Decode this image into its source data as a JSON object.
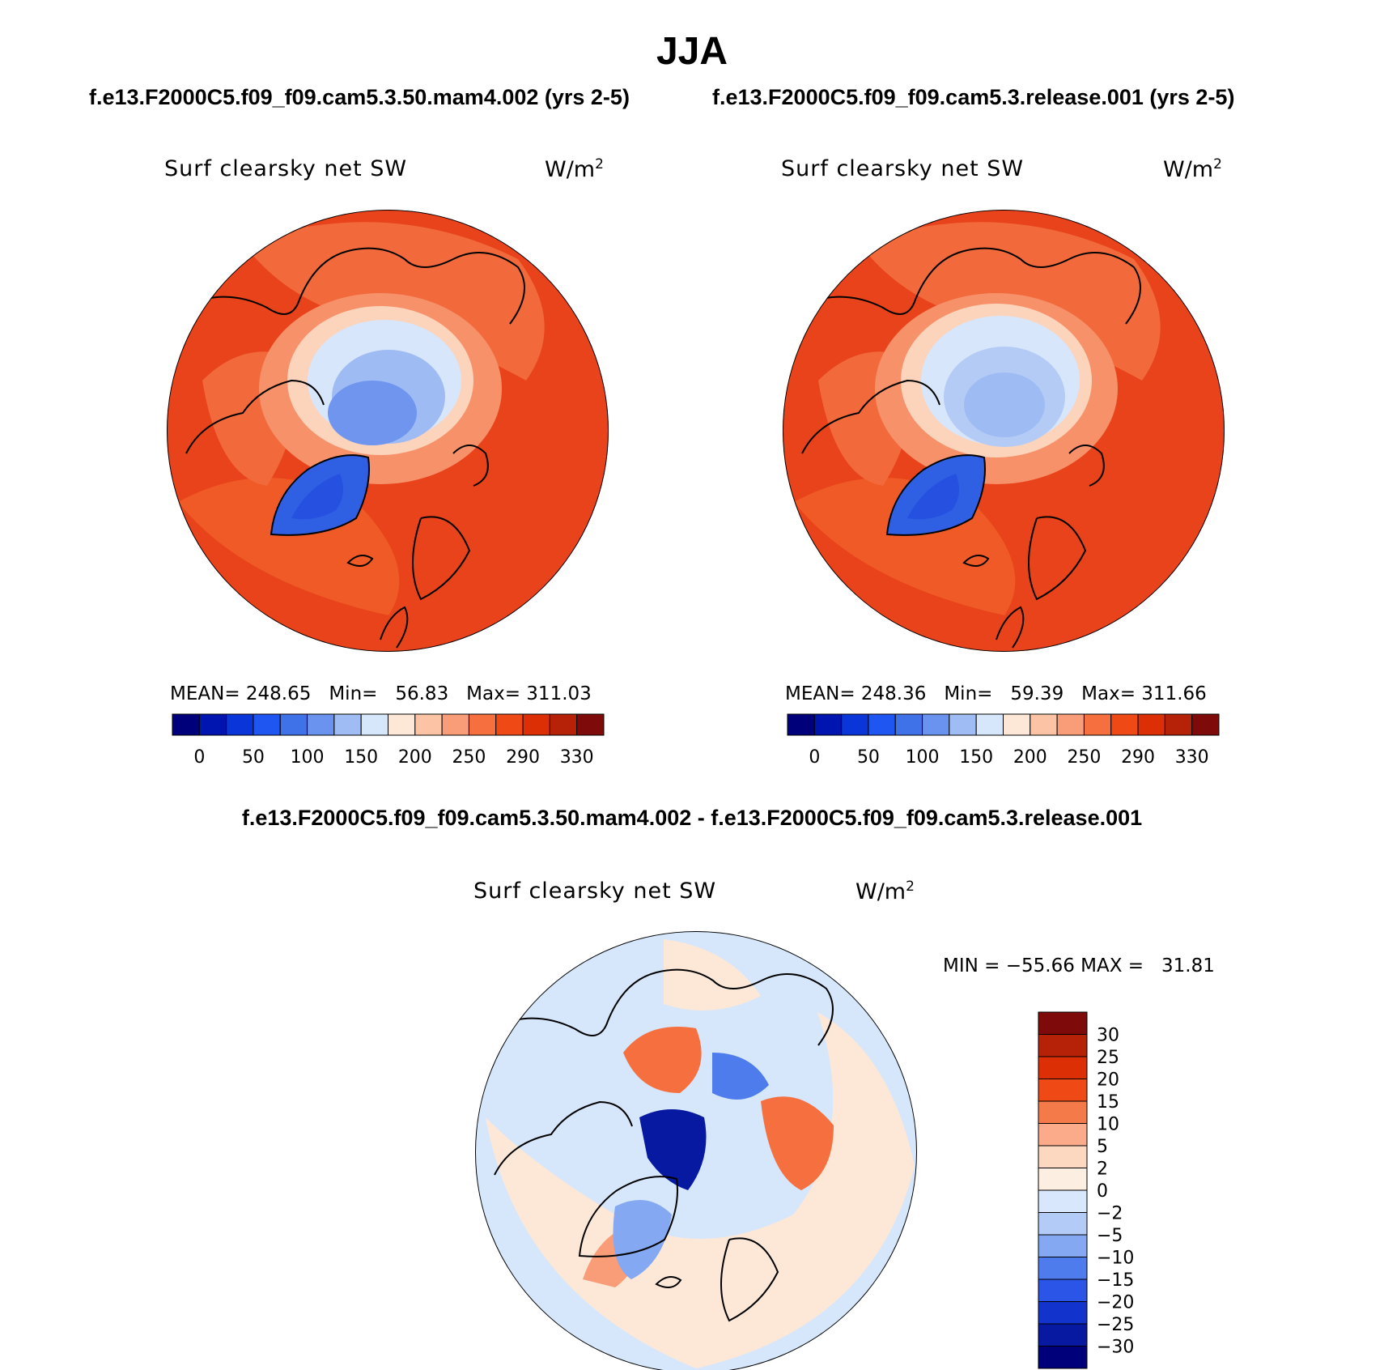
{
  "title": "JJA",
  "panels": [
    {
      "header": "f.e13.F2000C5.f09_f09.cam5.3.50.mam4.002 (yrs 2-5)",
      "variable": "Surf clearsky net SW",
      "units": "W/m",
      "units_exp": "2",
      "stats": {
        "mean_label": "MEAN=",
        "mean": "248.65",
        "min_label": "Min=",
        "min": "56.83",
        "max_label": "Max=",
        "max": "311.03"
      }
    },
    {
      "header": "f.e13.F2000C5.f09_f09.cam5.3.release.001 (yrs 2-5)",
      "variable": "Surf clearsky net SW",
      "units": "W/m",
      "units_exp": "2",
      "stats": {
        "mean_label": "MEAN=",
        "mean": "248.36",
        "min_label": "Min=",
        "min": "59.39",
        "max_label": "Max=",
        "max": "311.66"
      }
    }
  ],
  "top_colorbar": {
    "colors": [
      "#00007a",
      "#0015b0",
      "#0a35d8",
      "#1f55f0",
      "#3f72e8",
      "#6a92ef",
      "#a0bcf5",
      "#d6e6fb",
      "#fde8d8",
      "#fcc3a4",
      "#f99c78",
      "#f5703e",
      "#ef4a15",
      "#dc2f05",
      "#b52208",
      "#7e0a0a"
    ],
    "labels": [
      "0",
      "50",
      "100",
      "150",
      "200",
      "250",
      "290",
      "330"
    ]
  },
  "diff": {
    "header": "f.e13.F2000C5.f09_f09.cam5.3.50.mam4.002 - f.e13.F2000C5.f09_f09.cam5.3.release.001",
    "variable": "Surf clearsky net SW",
    "units": "W/m",
    "units_exp": "2",
    "minmax": "MIN = −55.66 MAX =   31.81",
    "colorbar": {
      "colors": [
        "#7e0a0a",
        "#b52208",
        "#dc2f05",
        "#ef4a15",
        "#f57a4a",
        "#fbab8a",
        "#fdd8c0",
        "#fdeee2",
        "#d8e7fb",
        "#b3ccf7",
        "#84a8f1",
        "#4f7cec",
        "#2a55e6",
        "#1233cc",
        "#0719a0",
        "#00007a"
      ],
      "labels": [
        "30",
        "25",
        "20",
        "15",
        "10",
        "5",
        "2",
        "0",
        "−2",
        "−5",
        "−10",
        "−15",
        "−20",
        "−25",
        "−30"
      ]
    }
  },
  "map_colors": {
    "ocean_hot": "#e8431a",
    "ocean_warm": "#f26a3c",
    "land_warm": "#f7916a",
    "sea_ice_edge": "#fcd3bb",
    "ice_light": "#d8e6fb",
    "ice_mid": "#9fbbf4",
    "ice_deep": "#5f88ea",
    "greenland": "#2f60e4",
    "diff_bg": "#d6e6fb",
    "diff_pos_light": "#fde8d8",
    "diff_pos": "#f5703e",
    "diff_neg": "#4f7cec",
    "diff_neg_deep": "#0719a0"
  }
}
